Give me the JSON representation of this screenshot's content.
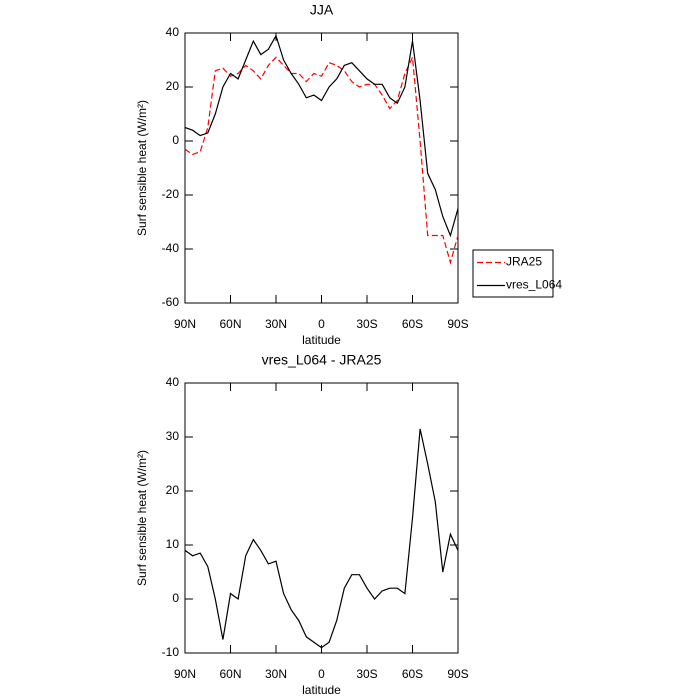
{
  "chart_data": [
    {
      "type": "line",
      "title": "JJA",
      "xlabel": "latitude",
      "ylabel": "Surf sensible heat (W/m²)",
      "x": [
        90,
        85,
        80,
        75,
        70,
        65,
        60,
        55,
        50,
        45,
        40,
        35,
        30,
        25,
        20,
        15,
        10,
        5,
        0,
        -5,
        -10,
        -15,
        -20,
        -25,
        -30,
        -35,
        -40,
        -45,
        -50,
        -55,
        -60,
        -65,
        -70,
        -75,
        -80,
        -85,
        -90
      ],
      "series": [
        {
          "name": "JRA25",
          "color": "#ff0000",
          "dash": true,
          "values": [
            -3,
            -5,
            -4,
            5,
            26,
            27,
            24,
            25,
            28,
            26,
            23,
            28,
            31,
            28,
            25,
            25,
            22,
            25,
            24,
            29,
            28,
            26,
            22,
            20,
            21,
            21,
            17,
            12,
            15,
            25,
            31,
            0,
            -35,
            -35,
            -35,
            -45,
            -35
          ]
        },
        {
          "name": "vres_L064",
          "color": "#000000",
          "dash": false,
          "values": [
            5,
            4,
            2,
            3,
            10,
            20,
            25,
            23,
            30,
            37,
            32,
            34,
            39,
            30,
            25,
            21,
            16,
            17,
            15,
            20,
            23,
            28,
            29,
            26,
            23,
            21,
            21,
            16,
            14,
            20,
            37,
            15,
            -12,
            -18,
            -28,
            -35,
            -25
          ]
        }
      ],
      "xlim": [
        90,
        -90
      ],
      "ylim": [
        -60,
        40
      ],
      "xticks": [
        {
          "value": 90,
          "label": "90N"
        },
        {
          "value": 60,
          "label": "60N"
        },
        {
          "value": 30,
          "label": "30N"
        },
        0,
        {
          "value": -30,
          "label": "30S"
        },
        {
          "value": -60,
          "label": "60S"
        },
        {
          "value": -90,
          "label": "90S"
        }
      ],
      "yticks": [
        -60,
        -40,
        -20,
        0,
        20,
        40
      ],
      "legend": "right"
    },
    {
      "type": "line",
      "title": "vres_L064 - JRA25",
      "xlabel": "latitude",
      "ylabel": "Surf sensible heat (W/m²)",
      "x": [
        90,
        85,
        80,
        75,
        70,
        65,
        60,
        55,
        50,
        45,
        40,
        35,
        30,
        25,
        20,
        15,
        10,
        5,
        0,
        -5,
        -10,
        -15,
        -20,
        -25,
        -30,
        -35,
        -40,
        -45,
        -50,
        -55,
        -60,
        -65,
        -70,
        -75,
        -80,
        -85,
        -90
      ],
      "series": [
        {
          "color": "#000000",
          "dash": false,
          "values": [
            9,
            8,
            8.5,
            6,
            0,
            -7.5,
            1,
            0,
            8,
            11,
            9,
            6.5,
            7,
            1,
            -2,
            -4,
            -7,
            -8,
            -9,
            -8,
            -4,
            2,
            4.5,
            4.5,
            2,
            0,
            1.5,
            2,
            2,
            1,
            15,
            31.5,
            25,
            18,
            5,
            12,
            9
          ]
        }
      ],
      "xlim": [
        90,
        -90
      ],
      "ylim": [
        -10,
        40
      ],
      "xticks": [
        {
          "value": 90,
          "label": "90N"
        },
        {
          "value": 60,
          "label": "60N"
        },
        {
          "value": 30,
          "label": "30N"
        },
        0,
        {
          "value": -30,
          "label": "30S"
        },
        {
          "value": -60,
          "label": "60S"
        },
        {
          "value": -90,
          "label": "90S"
        }
      ],
      "yticks": [
        -10,
        0,
        10,
        20,
        30,
        40
      ]
    }
  ]
}
